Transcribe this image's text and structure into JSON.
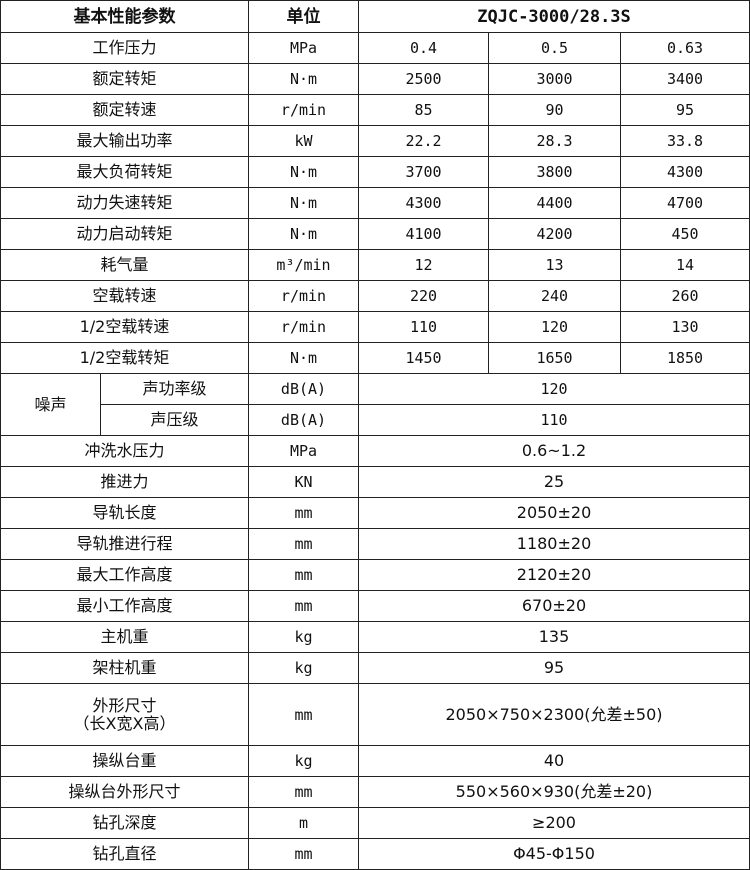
{
  "header": {
    "param": "基本性能参数",
    "unit": "单位",
    "model": "ZQJC-3000/28.3S"
  },
  "rows3": [
    {
      "name": "工作压力",
      "unit": "MPa",
      "values": [
        "0.4",
        "0.5",
        "0.63"
      ]
    },
    {
      "name": "额定转矩",
      "unit": "N·m",
      "values": [
        "2500",
        "3000",
        "3400"
      ]
    },
    {
      "name": "额定转速",
      "unit": "r/min",
      "values": [
        "85",
        "90",
        "95"
      ]
    },
    {
      "name": "最大输出功率",
      "unit": "kW",
      "values": [
        "22.2",
        "28.3",
        "33.8"
      ]
    },
    {
      "name": "最大负荷转矩",
      "unit": "N·m",
      "values": [
        "3700",
        "3800",
        "4300"
      ]
    },
    {
      "name": "动力失速转矩",
      "unit": "N·m",
      "values": [
        "4300",
        "4400",
        "4700"
      ]
    },
    {
      "name": "动力启动转矩",
      "unit": "N·m",
      "values": [
        "4100",
        "4200",
        "450"
      ]
    },
    {
      "name": "耗气量",
      "unit": "m³/min",
      "values": [
        "12",
        "13",
        "14"
      ]
    },
    {
      "name": "空载转速",
      "unit": "r/min",
      "values": [
        "220",
        "240",
        "260"
      ]
    },
    {
      "name": "1/2空载转速",
      "unit": "r/min",
      "values": [
        "110",
        "120",
        "130"
      ]
    },
    {
      "name": "1/2空载转矩",
      "unit": "N·m",
      "values": [
        "1450",
        "1650",
        "1850"
      ]
    }
  ],
  "noise": {
    "label": "噪声",
    "items": [
      {
        "name": "声功率级",
        "unit": "dB(A)",
        "value": "120"
      },
      {
        "name": "声压级",
        "unit": "dB(A)",
        "value": "110"
      }
    ]
  },
  "rows1a": [
    {
      "name": "冲洗水压力",
      "unit": "MPa",
      "value": "0.6~1.2"
    },
    {
      "name": "推进力",
      "unit": "KN",
      "value": "25"
    },
    {
      "name": "导轨长度",
      "unit": "mm",
      "value": "2050±20"
    },
    {
      "name": "导轨推进行程",
      "unit": "mm",
      "value": "1180±20"
    },
    {
      "name": "最大工作高度",
      "unit": "mm",
      "value": "2120±20"
    },
    {
      "name": "最小工作高度",
      "unit": "mm",
      "value": "670±20"
    },
    {
      "name": "主机重",
      "unit": "kg",
      "value": "135"
    },
    {
      "name": "架柱机重",
      "unit": "kg",
      "value": "95"
    }
  ],
  "dims": {
    "name": "外形尺寸",
    "name2": "（长X宽X高）",
    "unit": "mm",
    "value": "2050×750×2300(允差±50)"
  },
  "rows1b": [
    {
      "name": "操纵台重",
      "unit": "kg",
      "value": "40"
    },
    {
      "name": "操纵台外形尺寸",
      "unit": "mm",
      "value": "550×560×930(允差±20)"
    },
    {
      "name": "钻孔深度",
      "unit": "m",
      "value": "≥200"
    },
    {
      "name": "钻孔直径",
      "unit": "mm",
      "value": "Φ45-Φ150"
    }
  ]
}
